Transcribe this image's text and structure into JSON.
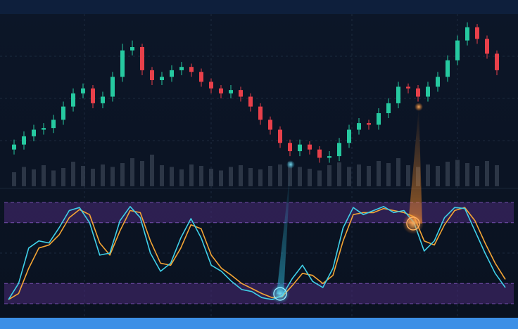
{
  "chart_data": [
    {
      "type": "candlestick",
      "up_color": "#26c9a0",
      "down_color": "#e8404a",
      "volume_color": "#3a4456",
      "ylim": [
        0,
        100
      ],
      "volume_ylim": [
        0,
        100
      ],
      "open": [
        18,
        21,
        26,
        30,
        31,
        36,
        44,
        52,
        55,
        46,
        50,
        62,
        78,
        80,
        66,
        60,
        62,
        66,
        68,
        65,
        59,
        55,
        52,
        54,
        50,
        44,
        36,
        30,
        22,
        17,
        21,
        18,
        13,
        14,
        22,
        30,
        34,
        33,
        40,
        46,
        56,
        55,
        50,
        56,
        62,
        72,
        84,
        92,
        85,
        76
      ],
      "high": [
        24,
        29,
        33,
        34,
        39,
        47,
        55,
        58,
        57,
        53,
        65,
        82,
        84,
        82,
        68,
        65,
        69,
        71,
        70,
        67,
        61,
        57,
        57,
        56,
        52,
        46,
        38,
        32,
        24,
        24,
        23,
        20,
        17,
        25,
        33,
        37,
        36,
        43,
        49,
        59,
        58,
        57,
        59,
        65,
        75,
        87,
        95,
        94,
        87,
        78
      ],
      "low": [
        15,
        18,
        23,
        27,
        28,
        33,
        41,
        49,
        43,
        43,
        47,
        59,
        75,
        63,
        57,
        57,
        59,
        63,
        62,
        56,
        52,
        49,
        49,
        47,
        41,
        33,
        27,
        19,
        14,
        14,
        15,
        10,
        10,
        11,
        19,
        27,
        30,
        30,
        37,
        43,
        52,
        47,
        47,
        53,
        59,
        69,
        81,
        82,
        73,
        63
      ],
      "close": [
        21,
        26,
        30,
        31,
        36,
        44,
        52,
        55,
        46,
        50,
        62,
        78,
        80,
        66,
        60,
        62,
        66,
        68,
        65,
        59,
        55,
        52,
        54,
        50,
        44,
        36,
        30,
        22,
        17,
        21,
        18,
        13,
        14,
        22,
        30,
        34,
        33,
        40,
        46,
        56,
        55,
        50,
        56,
        62,
        72,
        84,
        92,
        85,
        76,
        66
      ],
      "volume": [
        40,
        55,
        48,
        60,
        45,
        52,
        70,
        58,
        50,
        62,
        55,
        66,
        80,
        72,
        90,
        60,
        55,
        48,
        62,
        58,
        50,
        45,
        55,
        60,
        52,
        48,
        58,
        62,
        70,
        55,
        50,
        45,
        60,
        68,
        55,
        62,
        58,
        72,
        66,
        80,
        60,
        55,
        62,
        58,
        70,
        75,
        66,
        58,
        72,
        60
      ]
    },
    {
      "type": "line",
      "ylim": [
        0,
        100
      ],
      "bands": [
        [
          0,
          20
        ],
        [
          80,
          100
        ]
      ],
      "band_color": "#4a2a78",
      "series": [
        {
          "color": "#3fd0e8",
          "values": [
            4,
            20,
            55,
            62,
            60,
            75,
            92,
            95,
            80,
            48,
            50,
            82,
            96,
            85,
            50,
            32,
            40,
            65,
            84,
            65,
            38,
            32,
            22,
            14,
            12,
            6,
            4,
            8,
            25,
            38,
            22,
            16,
            35,
            75,
            95,
            88,
            92,
            96,
            90,
            92,
            80,
            52,
            62,
            85,
            95,
            94,
            72,
            50,
            30,
            16
          ]
        },
        {
          "color": "#f4a534",
          "values": [
            4,
            10,
            35,
            55,
            58,
            68,
            85,
            93,
            88,
            60,
            48,
            72,
            92,
            90,
            62,
            40,
            38,
            55,
            78,
            74,
            48,
            35,
            28,
            20,
            15,
            10,
            6,
            7,
            18,
            30,
            28,
            20,
            28,
            62,
            88,
            90,
            90,
            94,
            92,
            90,
            86,
            62,
            58,
            78,
            92,
            95,
            82,
            60,
            40,
            24
          ]
        }
      ]
    }
  ]
}
